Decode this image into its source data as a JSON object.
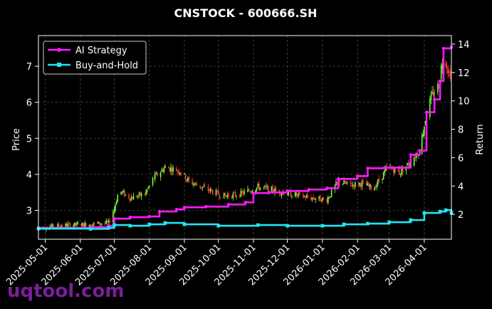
{
  "chart_data": {
    "type": "line",
    "title": "CNSTOCK - 600666.SH",
    "ylabel": "Price",
    "y2label": "Return",
    "ylim": [
      2.2,
      7.85
    ],
    "y2lim": [
      0.25,
      14.6
    ],
    "yticks": [
      "3",
      "4",
      "5",
      "6",
      "7"
    ],
    "y2ticks": [
      "2",
      "4",
      "6",
      "8",
      "10",
      "12",
      "14"
    ],
    "xlim": [
      "2025-04-25",
      "2026-04-25"
    ],
    "x_ticks": [
      "2025-05-01",
      "2025-06-01",
      "2025-07-01",
      "2025-08-01",
      "2025-09-01",
      "2025-10-01",
      "2025-11-01",
      "2025-12-01",
      "2026-01-01",
      "2026-02-01",
      "2026-03-01",
      "2026-04-01"
    ],
    "grid": true,
    "legend_position": "top-left",
    "price_path": [
      [
        "2025-04-25",
        2.52
      ],
      [
        "2025-05-15",
        2.58
      ],
      [
        "2025-06-10",
        2.62
      ],
      [
        "2025-06-26",
        2.65
      ],
      [
        "2025-07-01",
        3.05
      ],
      [
        "2025-07-05",
        3.55
      ],
      [
        "2025-07-15",
        3.35
      ],
      [
        "2025-07-28",
        3.45
      ],
      [
        "2025-08-05",
        3.9
      ],
      [
        "2025-08-15",
        4.2
      ],
      [
        "2025-08-28",
        4.1
      ],
      [
        "2025-09-05",
        3.8
      ],
      [
        "2025-09-20",
        3.6
      ],
      [
        "2025-10-05",
        3.4
      ],
      [
        "2025-10-20",
        3.45
      ],
      [
        "2025-11-05",
        3.65
      ],
      [
        "2025-11-20",
        3.55
      ],
      [
        "2025-12-05",
        3.45
      ],
      [
        "2025-12-20",
        3.35
      ],
      [
        "2026-01-05",
        3.3
      ],
      [
        "2026-01-15",
        3.8
      ],
      [
        "2026-01-25",
        3.7
      ],
      [
        "2026-02-05",
        3.75
      ],
      [
        "2026-02-15",
        3.6
      ],
      [
        "2026-02-28",
        4.2
      ],
      [
        "2026-03-10",
        4.05
      ],
      [
        "2026-03-20",
        4.35
      ],
      [
        "2026-03-28",
        4.7
      ],
      [
        "2026-04-03",
        5.7
      ],
      [
        "2026-04-08",
        6.2
      ],
      [
        "2026-04-14",
        6.5
      ],
      [
        "2026-04-18",
        7.4
      ],
      [
        "2026-04-23",
        6.8
      ]
    ],
    "series": [
      {
        "name": "AI Strategy",
        "color": "#ff1aff",
        "points": [
          [
            "2025-04-25",
            1.05
          ],
          [
            "2025-06-10",
            1.1
          ],
          [
            "2025-06-26",
            1.2
          ],
          [
            "2025-07-01",
            1.7
          ],
          [
            "2025-07-15",
            1.8
          ],
          [
            "2025-08-01",
            1.85
          ],
          [
            "2025-08-10",
            2.2
          ],
          [
            "2025-08-25",
            2.35
          ],
          [
            "2025-09-01",
            2.5
          ],
          [
            "2025-09-20",
            2.55
          ],
          [
            "2025-10-10",
            2.7
          ],
          [
            "2025-10-25",
            2.85
          ],
          [
            "2025-11-01",
            3.5
          ],
          [
            "2025-11-15",
            3.55
          ],
          [
            "2025-12-01",
            3.65
          ],
          [
            "2025-12-20",
            3.75
          ],
          [
            "2026-01-05",
            3.85
          ],
          [
            "2026-01-15",
            4.5
          ],
          [
            "2026-02-01",
            4.7
          ],
          [
            "2026-02-10",
            5.25
          ],
          [
            "2026-02-25",
            5.3
          ],
          [
            "2026-03-10",
            5.3
          ],
          [
            "2026-03-20",
            6.2
          ],
          [
            "2026-03-28",
            6.5
          ],
          [
            "2026-04-03",
            9.2
          ],
          [
            "2026-04-10",
            10.1
          ],
          [
            "2026-04-15",
            11.4
          ],
          [
            "2026-04-18",
            13.7
          ],
          [
            "2026-04-25",
            13.8
          ]
        ]
      },
      {
        "name": "Buy-and-Hold",
        "color": "#22e5f0",
        "points": [
          [
            "2025-04-25",
            1.0
          ],
          [
            "2025-06-10",
            0.98
          ],
          [
            "2025-06-26",
            1.05
          ],
          [
            "2025-07-01",
            1.25
          ],
          [
            "2025-07-15",
            1.2
          ],
          [
            "2025-08-01",
            1.3
          ],
          [
            "2025-08-15",
            1.4
          ],
          [
            "2025-09-01",
            1.3
          ],
          [
            "2025-10-01",
            1.2
          ],
          [
            "2025-11-05",
            1.25
          ],
          [
            "2025-12-01",
            1.2
          ],
          [
            "2026-01-01",
            1.2
          ],
          [
            "2026-01-20",
            1.3
          ],
          [
            "2026-02-10",
            1.35
          ],
          [
            "2026-03-01",
            1.45
          ],
          [
            "2026-03-20",
            1.6
          ],
          [
            "2026-04-01",
            2.1
          ],
          [
            "2026-04-15",
            2.2
          ],
          [
            "2026-04-20",
            2.3
          ],
          [
            "2026-04-25",
            2.1
          ]
        ]
      }
    ]
  },
  "legend": {
    "ai_label": "AI Strategy",
    "bh_label": "Buy-and-Hold"
  },
  "watermark": "uqtool.com",
  "colors": {
    "up_candle": "#7bff3a",
    "down_candle": "#ff3b3b",
    "grid": "#4a4a4a"
  }
}
